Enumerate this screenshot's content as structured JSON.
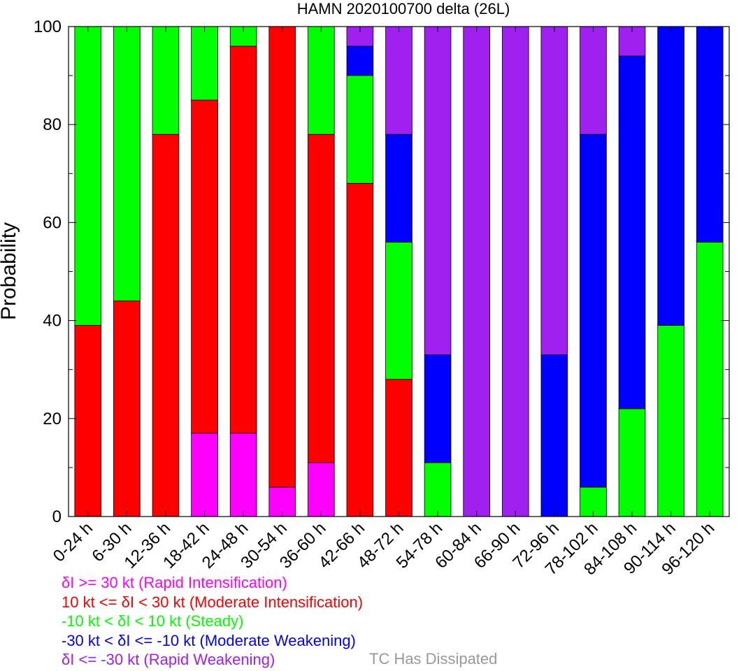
{
  "chart_data": {
    "type": "bar",
    "stacked": true,
    "title": "HAMN 2020100700 delta (26L)",
    "xlabel": "",
    "ylabel": "Probability",
    "ylim": [
      0,
      100
    ],
    "yticks": [
      0,
      20,
      40,
      60,
      80,
      100
    ],
    "categories": [
      "0-24 h",
      "6-30 h",
      "12-36 h",
      "18-42 h",
      "24-48 h",
      "30-54 h",
      "36-60 h",
      "42-66 h",
      "48-72 h",
      "54-78 h",
      "60-84 h",
      "66-90 h",
      "72-96 h",
      "78-102 h",
      "84-108 h",
      "90-114 h",
      "96-120 h"
    ],
    "series": [
      {
        "key": "ri",
        "name": "δI >= 30 kt (Rapid Intensification)",
        "color": "#ff00ff",
        "values": [
          0,
          0,
          0,
          17,
          17,
          6,
          11,
          0,
          0,
          0,
          0,
          0,
          0,
          0,
          0,
          0,
          0
        ]
      },
      {
        "key": "mi",
        "name": "10 kt <= δI < 30 kt (Moderate Intensification)",
        "color": "#ff0000",
        "values": [
          39,
          44,
          78,
          68,
          79,
          94,
          67,
          68,
          28,
          0,
          0,
          0,
          0,
          0,
          0,
          0,
          0
        ]
      },
      {
        "key": "st",
        "name": "-10 kt < δI < 10 kt (Steady)",
        "color": "#00ff00",
        "values": [
          61,
          56,
          22,
          15,
          4,
          0,
          22,
          22,
          28,
          11,
          0,
          0,
          0,
          6,
          22,
          39,
          56
        ]
      },
      {
        "key": "mw",
        "name": "-30 kt < δI <= -10 kt (Moderate Weakening)",
        "color": "#0000ff",
        "values": [
          0,
          0,
          0,
          0,
          0,
          0,
          0,
          6,
          22,
          22,
          0,
          0,
          33,
          72,
          72,
          61,
          44
        ]
      },
      {
        "key": "rw",
        "name": "δI <= -30 kt (Rapid Weakening)",
        "color": "#a020f0",
        "values": [
          0,
          0,
          0,
          0,
          0,
          0,
          0,
          4,
          22,
          67,
          100,
          100,
          67,
          22,
          6,
          0,
          0
        ]
      }
    ],
    "dissipated_label": "TC Has Dissipated",
    "dissipated_color": "#999999"
  }
}
